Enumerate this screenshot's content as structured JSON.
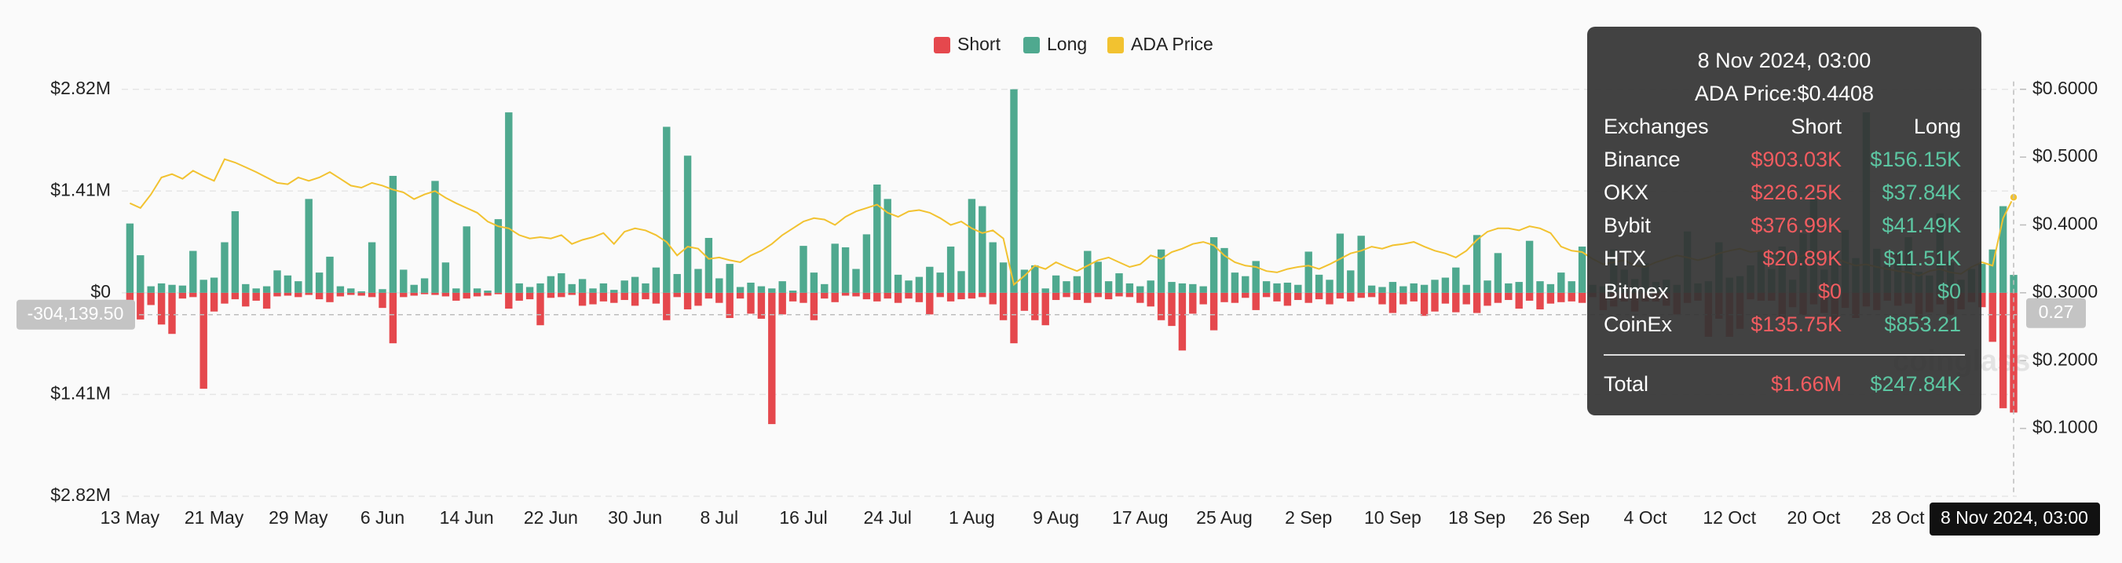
{
  "chart_data": {
    "type": "bar-line",
    "categories": [
      "13 May",
      null,
      null,
      null,
      null,
      null,
      null,
      null,
      "21 May",
      null,
      null,
      null,
      null,
      null,
      null,
      null,
      "29 May",
      null,
      null,
      null,
      null,
      null,
      null,
      null,
      "6 Jun",
      null,
      null,
      null,
      null,
      null,
      null,
      null,
      "14 Jun",
      null,
      null,
      null,
      null,
      null,
      null,
      null,
      "22 Jun",
      null,
      null,
      null,
      null,
      null,
      null,
      null,
      "30 Jun",
      null,
      null,
      null,
      null,
      null,
      null,
      null,
      "8 Jul",
      null,
      null,
      null,
      null,
      null,
      null,
      null,
      "16 Jul",
      null,
      null,
      null,
      null,
      null,
      null,
      null,
      "24 Jul",
      null,
      null,
      null,
      null,
      null,
      null,
      null,
      "1 Aug",
      null,
      null,
      null,
      null,
      null,
      null,
      null,
      "9 Aug",
      null,
      null,
      null,
      null,
      null,
      null,
      null,
      "17 Aug",
      null,
      null,
      null,
      null,
      null,
      null,
      null,
      "25 Aug",
      null,
      null,
      null,
      null,
      null,
      null,
      null,
      "2 Sep",
      null,
      null,
      null,
      null,
      null,
      null,
      null,
      "10 Sep",
      null,
      null,
      null,
      null,
      null,
      null,
      null,
      "18 Sep",
      null,
      null,
      null,
      null,
      null,
      null,
      null,
      "26 Sep",
      null,
      null,
      null,
      null,
      null,
      null,
      null,
      "4 Oct",
      null,
      null,
      null,
      null,
      null,
      null,
      null,
      "12 Oct",
      null,
      null,
      null,
      null,
      null,
      null,
      null,
      "20 Oct",
      null,
      null,
      null,
      null,
      null,
      null,
      null,
      "28 Oct",
      null,
      null,
      null,
      null,
      null,
      null,
      null,
      null,
      null,
      null,
      "8 Nov 2024, 03:00"
    ],
    "series": [
      {
        "name": "Short",
        "color": "#e5484d",
        "values": [
          -330000,
          -370000,
          -170000,
          -440000,
          -570000,
          -80000,
          -60000,
          -1330000,
          -260000,
          -150000,
          -90000,
          -190000,
          -110000,
          -220000,
          -50000,
          -40000,
          -60000,
          -30000,
          -90000,
          -130000,
          -50000,
          -30000,
          -40000,
          -60000,
          -210000,
          -700000,
          -60000,
          -40000,
          -20000,
          -30000,
          -50000,
          -110000,
          -80000,
          -50000,
          -40000,
          -20000,
          -220000,
          -110000,
          -90000,
          -450000,
          -70000,
          -60000,
          -30000,
          -180000,
          -160000,
          -120000,
          -140000,
          -100000,
          -180000,
          -90000,
          -150000,
          -380000,
          -60000,
          -230000,
          -180000,
          -80000,
          -140000,
          -350000,
          -80000,
          -290000,
          -360000,
          -1820000,
          -300000,
          -120000,
          -140000,
          -380000,
          -80000,
          -130000,
          -40000,
          -50000,
          -90000,
          -120000,
          -80000,
          -140000,
          -80000,
          -130000,
          -300000,
          -60000,
          -120000,
          -90000,
          -80000,
          -60000,
          -160000,
          -380000,
          -700000,
          -250000,
          -380000,
          -450000,
          -100000,
          -60000,
          -100000,
          -140000,
          -60000,
          -90000,
          -50000,
          -60000,
          -140000,
          -190000,
          -380000,
          -460000,
          -800000,
          -290000,
          -160000,
          -520000,
          -130000,
          -140000,
          -70000,
          -240000,
          -60000,
          -120000,
          -180000,
          -100000,
          -140000,
          -90000,
          -160000,
          -80000,
          -120000,
          -70000,
          -60000,
          -160000,
          -280000,
          -160000,
          -120000,
          -320000,
          -260000,
          -150000,
          -270000,
          -160000,
          -280000,
          -180000,
          -140000,
          -100000,
          -220000,
          -110000,
          -230000,
          -150000,
          -130000,
          -120000,
          -140000,
          -60000,
          -240000,
          -190000,
          -120000,
          -260000,
          -120000,
          -120000,
          -180000,
          -300000,
          -140000,
          -110000,
          -610000,
          -360000,
          -610000,
          -500000,
          -90000,
          -110000,
          -110000,
          -350000,
          -200000,
          -310000,
          -160000,
          -280000,
          -440000,
          -210000,
          -350000,
          -190000,
          -240000,
          -110000,
          -180000,
          -150000,
          -350000,
          -270000,
          -160000,
          -310000,
          -230000,
          -130000,
          -200000,
          -680000,
          -1600000,
          -1660000
        ]
      },
      {
        "name": "Long",
        "color": "#4fa98f",
        "values": [
          960000,
          520000,
          90000,
          130000,
          110000,
          100000,
          580000,
          180000,
          210000,
          700000,
          1130000,
          120000,
          60000,
          90000,
          310000,
          240000,
          160000,
          1300000,
          280000,
          500000,
          90000,
          60000,
          20000,
          700000,
          50000,
          1620000,
          320000,
          110000,
          200000,
          1550000,
          420000,
          60000,
          920000,
          60000,
          30000,
          1020000,
          2500000,
          130000,
          80000,
          130000,
          230000,
          270000,
          120000,
          190000,
          60000,
          130000,
          40000,
          170000,
          220000,
          130000,
          350000,
          2300000,
          260000,
          1900000,
          330000,
          760000,
          200000,
          400000,
          80000,
          140000,
          90000,
          60000,
          160000,
          30000,
          650000,
          280000,
          120000,
          680000,
          630000,
          330000,
          810000,
          1500000,
          1300000,
          250000,
          170000,
          220000,
          360000,
          280000,
          640000,
          300000,
          1300000,
          1200000,
          700000,
          420000,
          2820000,
          320000,
          380000,
          60000,
          240000,
          160000,
          230000,
          580000,
          430000,
          160000,
          270000,
          130000,
          90000,
          170000,
          600000,
          150000,
          130000,
          120000,
          90000,
          770000,
          620000,
          280000,
          230000,
          440000,
          160000,
          130000,
          140000,
          110000,
          570000,
          250000,
          180000,
          820000,
          310000,
          790000,
          100000,
          80000,
          150000,
          90000,
          130000,
          110000,
          180000,
          210000,
          350000,
          110000,
          800000,
          170000,
          550000,
          130000,
          150000,
          720000,
          160000,
          120000,
          280000,
          160000,
          640000,
          110000,
          90000,
          600000,
          320000,
          190000,
          410000,
          150000,
          180000,
          110000,
          850000,
          130000,
          160000,
          700000,
          210000,
          230000,
          380000,
          570000,
          330000,
          640000,
          180000,
          820000,
          1300000,
          320000,
          590000,
          870000,
          480000,
          2500000,
          610000,
          380000,
          540000,
          770000,
          290000,
          240000,
          1100000,
          420000,
          180000,
          330000,
          400000,
          600000,
          1200000,
          247840
        ]
      },
      {
        "name": "ADA Price",
        "color": "#f2c230",
        "axis": "y2",
        "values": [
          0.432,
          0.425,
          0.445,
          0.47,
          0.475,
          0.468,
          0.48,
          0.472,
          0.465,
          0.497,
          0.492,
          0.485,
          0.478,
          0.47,
          0.462,
          0.46,
          0.47,
          0.465,
          0.47,
          0.478,
          0.468,
          0.458,
          0.455,
          0.462,
          0.458,
          0.452,
          0.448,
          0.438,
          0.445,
          0.45,
          0.44,
          0.432,
          0.425,
          0.418,
          0.405,
          0.398,
          0.395,
          0.385,
          0.38,
          0.382,
          0.38,
          0.385,
          0.372,
          0.378,
          0.382,
          0.388,
          0.372,
          0.39,
          0.395,
          0.392,
          0.385,
          0.375,
          0.355,
          0.368,
          0.365,
          0.35,
          0.352,
          0.348,
          0.345,
          0.355,
          0.362,
          0.372,
          0.385,
          0.395,
          0.405,
          0.41,
          0.408,
          0.4,
          0.412,
          0.42,
          0.425,
          0.43,
          0.418,
          0.412,
          0.42,
          0.422,
          0.418,
          0.41,
          0.4,
          0.405,
          0.395,
          0.388,
          0.392,
          0.38,
          0.312,
          0.325,
          0.34,
          0.335,
          0.345,
          0.338,
          0.332,
          0.34,
          0.348,
          0.352,
          0.345,
          0.338,
          0.342,
          0.355,
          0.35,
          0.36,
          0.365,
          0.372,
          0.375,
          0.37,
          0.355,
          0.345,
          0.34,
          0.338,
          0.332,
          0.33,
          0.335,
          0.338,
          0.34,
          0.335,
          0.342,
          0.35,
          0.358,
          0.362,
          0.368,
          0.365,
          0.37,
          0.372,
          0.375,
          0.368,
          0.362,
          0.358,
          0.352,
          0.362,
          0.378,
          0.39,
          0.395,
          0.395,
          0.392,
          0.398,
          0.395,
          0.388,
          0.368,
          0.362,
          0.36,
          0.35,
          0.342,
          0.345,
          0.348,
          0.34,
          0.338,
          0.345,
          0.35,
          0.355,
          0.352,
          0.348,
          0.352,
          0.358,
          0.362,
          0.365,
          0.36,
          0.362,
          0.358,
          0.35,
          0.348,
          0.355,
          0.36,
          0.358,
          0.352,
          0.345,
          0.34,
          0.342,
          0.338,
          0.335,
          0.332,
          0.33,
          0.325,
          0.332,
          0.335,
          0.33,
          0.328,
          0.338,
          0.345,
          0.34,
          0.41,
          0.4408
        ]
      }
    ],
    "ylim": [
      -2820000,
      2820000
    ],
    "yticks": [
      {
        "value": 2820000,
        "label": "$2.82M"
      },
      {
        "value": 1410000,
        "label": "$1.41M"
      },
      {
        "value": 0,
        "label": "$0"
      },
      {
        "value": -1410000,
        "label": "$1.41M"
      },
      {
        "value": -2820000,
        "label": "$2.82M"
      }
    ],
    "y2lim": [
      0,
      0.6
    ],
    "y2ticks": [
      {
        "value": 0.6,
        "label": "$0.6000"
      },
      {
        "value": 0.5,
        "label": "$0.5000"
      },
      {
        "value": 0.4,
        "label": "$0.4000"
      },
      {
        "value": 0.3,
        "label": "$0.3000"
      },
      {
        "value": 0.2,
        "label": "$0.2000"
      },
      {
        "value": 0.1,
        "label": "$0.1000"
      }
    ],
    "grid": true,
    "legend": "top",
    "cursor": {
      "y": {
        "value": -304139.5,
        "label": "-304,139.50"
      },
      "y2": 0.27
    },
    "watermark": "coinglass"
  },
  "tooltip": {
    "title": "8 Nov 2024, 03:00",
    "price": "ADA Price:$0.4408",
    "header": [
      "Exchanges",
      "Short",
      "Long"
    ],
    "rows": [
      [
        "Binance",
        "$903.03K",
        "$156.15K"
      ],
      [
        "OKX",
        "$226.25K",
        "$37.84K"
      ],
      [
        "Bybit",
        "$376.99K",
        "$41.49K"
      ],
      [
        "HTX",
        "$20.89K",
        "$11.51K"
      ],
      [
        "Bitmex",
        "$0",
        "$0"
      ],
      [
        "CoinEx",
        "$135.75K",
        "$853.21"
      ]
    ],
    "total": [
      "Total",
      "$1.66M",
      "$247.84K"
    ]
  }
}
